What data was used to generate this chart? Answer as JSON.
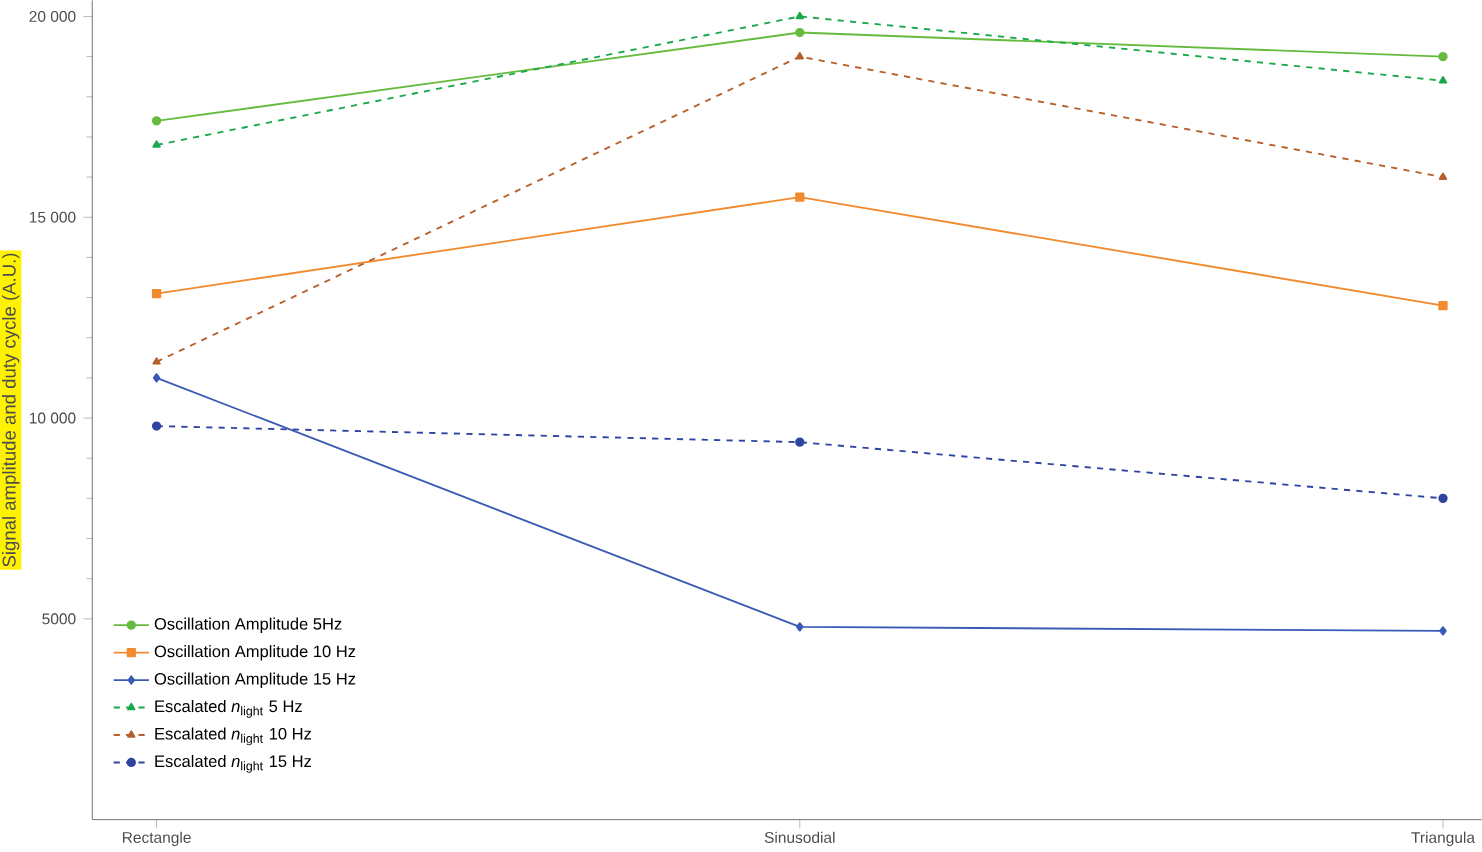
{
  "chart_data": {
    "type": "line",
    "ylabel": "Signal amplitude and duty cycle (A.U.)",
    "categories": [
      "Rectangle",
      "Sinusodial",
      "Triangula"
    ],
    "ylim": [
      0,
      20400
    ],
    "yticks": [
      5000,
      {
        "value": 10000,
        "label": "10 000"
      },
      {
        "value": 15000,
        "label": "15 000"
      },
      {
        "value": 20000,
        "label": "20 000"
      }
    ],
    "grid": false,
    "legend": "bottom left",
    "series": [
      {
        "name": "Oscillation Amplitude 5Hz",
        "color": "#66bb3f",
        "marker": "circle",
        "line_style": "solid",
        "values": [
          17400,
          19600,
          19000
        ]
      },
      {
        "name": "Oscillation Amplitude 10 Hz",
        "color": "#f28a2e",
        "marker": "square",
        "line_style": "solid",
        "values": [
          13100,
          15500,
          12800
        ]
      },
      {
        "name": "Oscillation Amplitude 15 Hz",
        "color": "#3a5bb5",
        "marker": "diamond",
        "line_style": "solid",
        "values": [
          11000,
          4800,
          4700
        ]
      },
      {
        "name": "Escalated *n*$_{light}$ 5 Hz",
        "color": "#1aa84a",
        "marker": "triangle",
        "line_style": "dashed",
        "values": [
          16800,
          20000,
          18400
        ]
      },
      {
        "name": "Escalated *n*$_{light}$ 10 Hz",
        "color": "#b5602d",
        "marker": "triangle",
        "line_style": "dashed",
        "values": [
          11400,
          19000,
          16000
        ]
      },
      {
        "name": "Escalated *n*$_{light}$ 15 Hz",
        "color": "#2e45a0",
        "marker": "circle",
        "line_style": "dashed",
        "values": [
          9800,
          9400,
          8000
        ]
      }
    ]
  }
}
